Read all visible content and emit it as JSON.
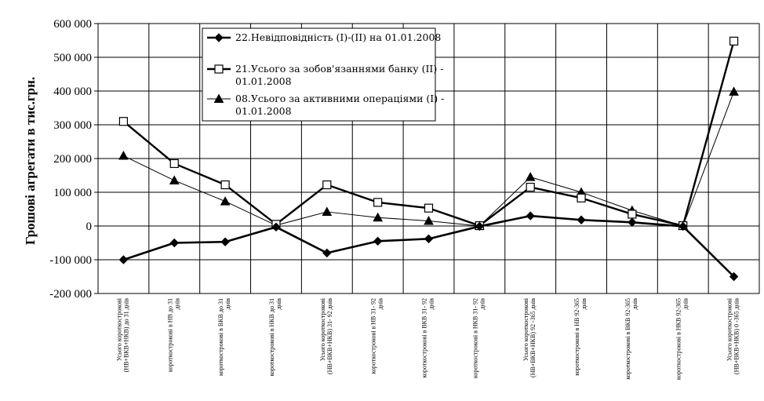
{
  "chart_data": {
    "type": "line",
    "ylabel": "Грошові агрегати в тис.грн.",
    "ylim": [
      -200000,
      600000
    ],
    "ytick_step": 100000,
    "ytick_labels": [
      "-200 000",
      "-100 000",
      "0",
      "100 000",
      "200 000",
      "300 000",
      "400 000",
      "500 000",
      "600 000"
    ],
    "grid": true,
    "legend_position": "top-left",
    "categories": [
      [
        "Усього короткострокові",
        "(НВ+ВКВ+НКВ) до 31 днів"
      ],
      [
        "короткострокові в НВ до 31",
        "днів"
      ],
      [
        "короткострокові в ВКВ до 31",
        "днів"
      ],
      [
        "короткострокові в НКВ до 31",
        "днів"
      ],
      [
        "Усього короткострокові",
        "(НВ+ВКВ+НКВ) 31- 92 днів"
      ],
      [
        "короткострокові в НВ 31- 92",
        "днів"
      ],
      [
        "короткострокові в ВКВ 31- 92",
        "днів"
      ],
      [
        "короткострокові в НКВ 31- 92",
        "днів"
      ],
      [
        "Усього короткострокові",
        "(НВ+ВКВ+НКВ) 92 -365 днів"
      ],
      [
        "короткострокові в НВ 92-365",
        "днів"
      ],
      [
        "короткострокові в ВКВ 92-365",
        "днів"
      ],
      [
        "короткострокові в НКВ 92-365",
        "днів"
      ],
      [
        "Усього короткострокові",
        "(НВ+ВКВ+НКВ) 0 -365 днів"
      ]
    ],
    "series": [
      {
        "name": "22.Невідповідність (І)-(ІІ) на 01.01.2008",
        "legend_lines": [
          "22.Невідповідність (І)-(ІІ) на 01.01.2008"
        ],
        "marker": "diamond",
        "line_width": 2.6,
        "values": [
          -100000,
          -50000,
          -47000,
          -3000,
          -80000,
          -45000,
          -38000,
          -1000,
          30000,
          18000,
          11000,
          -1000,
          -150000
        ]
      },
      {
        "name": "21.Усього за зобов'язаннями банку (ІІ) - 01.01.2008",
        "legend_lines": [
          "21.Усього за зобов'язаннями банку (ІІ) -",
          "01.01.2008"
        ],
        "marker": "square",
        "line_width": 2.4,
        "values": [
          310000,
          185000,
          122000,
          5000,
          122000,
          70000,
          53000,
          1000,
          115000,
          83000,
          35000,
          1000,
          548000
        ]
      },
      {
        "name": "08.Усього за активними операціями (І) - 01.01.2008",
        "legend_lines": [
          "08.Усього за активними операціями (І) -",
          "01.01.2008"
        ],
        "marker": "triangle",
        "line_width": 1.0,
        "values": [
          208000,
          135000,
          73000,
          2000,
          42000,
          25000,
          15000,
          0,
          145000,
          100000,
          46000,
          0,
          398000
        ]
      }
    ]
  }
}
